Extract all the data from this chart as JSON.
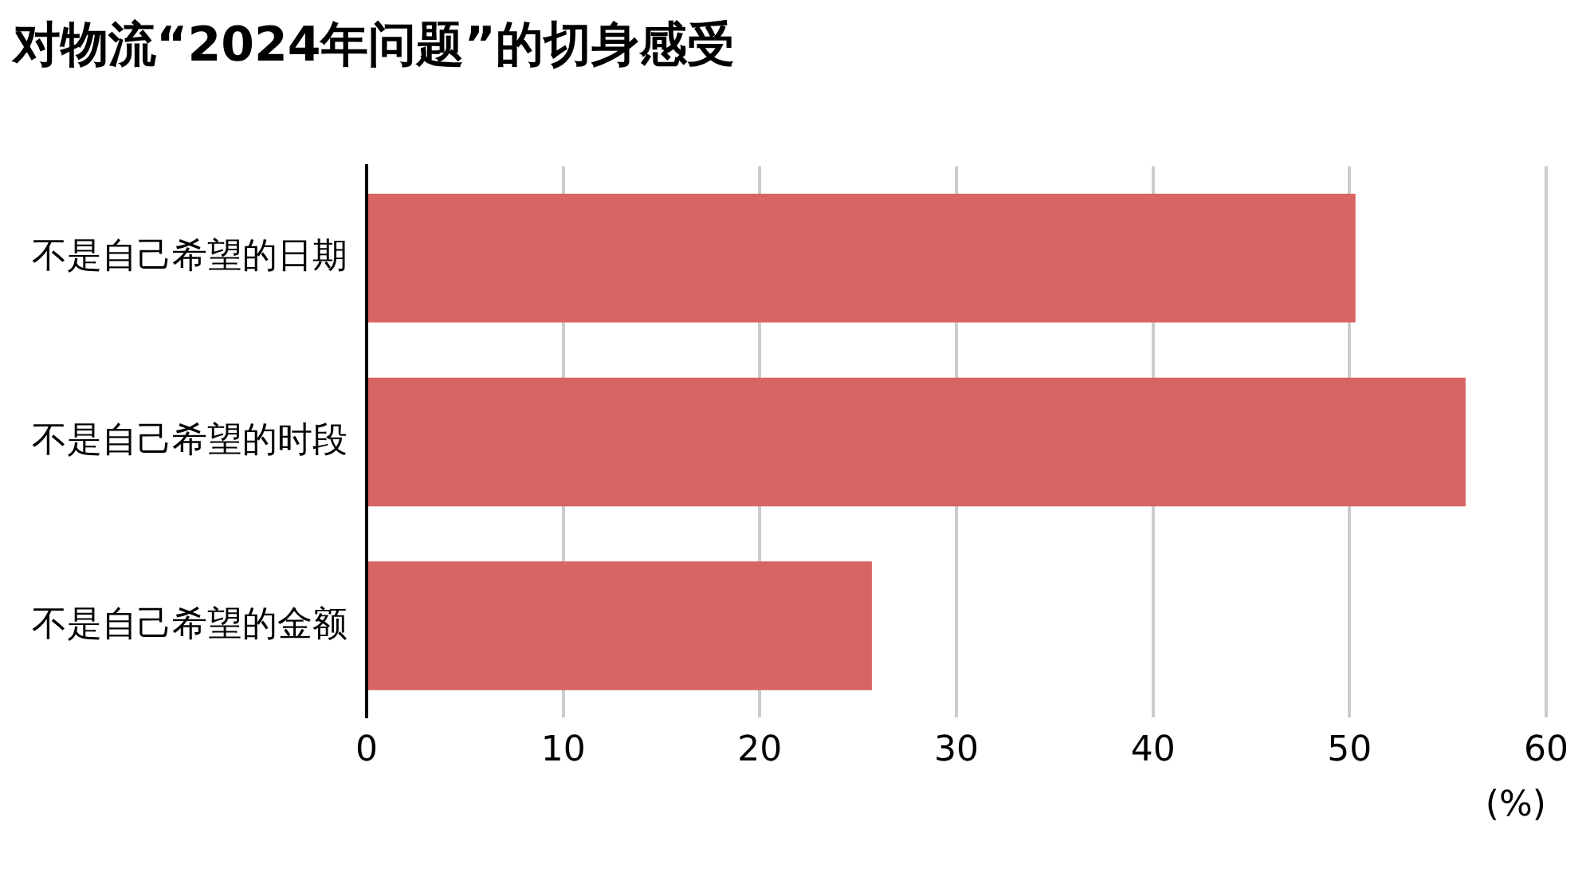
{
  "chart_data": {
    "type": "bar",
    "orientation": "horizontal",
    "title": "对物流“2024年问题”的切身感受",
    "categories": [
      "不是自己希望的日期",
      "不是自己希望的时段",
      "不是自己希望的金额"
    ],
    "values": [
      50.3,
      55.9,
      25.7
    ],
    "color": "#d96464",
    "xlabel": "(%)",
    "xlim": [
      0,
      60
    ],
    "xticks": [
      0,
      10,
      20,
      30,
      40,
      50,
      60
    ],
    "grid": "x",
    "legend": false
  }
}
